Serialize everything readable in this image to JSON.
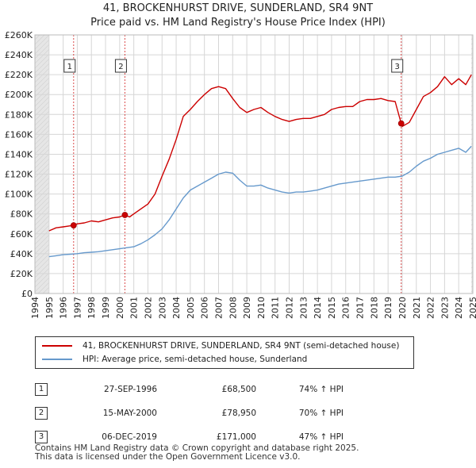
{
  "header": {
    "title_line1": "41, BROCKENHURST DRIVE, SUNDERLAND, SR4 9NT",
    "title_line2": "Price paid vs. HM Land Registry's House Price Index (HPI)"
  },
  "legend": {
    "items": [
      {
        "label": "41, BROCKENHURST DRIVE, SUNDERLAND, SR4 9NT (semi-detached house)",
        "color": "#cc0000"
      },
      {
        "label": "HPI: Average price, semi-detached house, Sunderland",
        "color": "#6699cc"
      }
    ]
  },
  "sales": [
    {
      "num": "1",
      "date": "27-SEP-1996",
      "price": "£68,500",
      "hpi": "74% ↑ HPI"
    },
    {
      "num": "2",
      "date": "15-MAY-2000",
      "price": "£78,950",
      "hpi": "70% ↑ HPI"
    },
    {
      "num": "3",
      "date": "06-DEC-2019",
      "price": "£171,000",
      "hpi": "47% ↑ HPI"
    }
  ],
  "footer": {
    "line1": "Contains HM Land Registry data © Crown copyright and database right 2025.",
    "line2": "This data is licensed under the Open Government Licence v3.0."
  },
  "chart_data": {
    "type": "line",
    "title": "41, BROCKENHURST DRIVE, SUNDERLAND, SR4 9NT",
    "subtitle": "Price paid vs. HM Land Registry's House Price Index (HPI)",
    "xlabel": "",
    "ylabel": "",
    "xlim": [
      1994,
      2025
    ],
    "ylim": [
      0,
      260000
    ],
    "x_ticks": [
      1994,
      1995,
      1996,
      1997,
      1998,
      1999,
      2000,
      2001,
      2002,
      2003,
      2004,
      2005,
      2006,
      2007,
      2008,
      2009,
      2010,
      2011,
      2012,
      2013,
      2014,
      2015,
      2016,
      2017,
      2018,
      2019,
      2020,
      2021,
      2022,
      2023,
      2024,
      2025
    ],
    "y_ticks": [
      {
        "value": 0,
        "label": "£0"
      },
      {
        "value": 20000,
        "label": "£20K"
      },
      {
        "value": 40000,
        "label": "£40K"
      },
      {
        "value": 60000,
        "label": "£60K"
      },
      {
        "value": 80000,
        "label": "£80K"
      },
      {
        "value": 100000,
        "label": "£100K"
      },
      {
        "value": 120000,
        "label": "£120K"
      },
      {
        "value": 140000,
        "label": "£140K"
      },
      {
        "value": 160000,
        "label": "£160K"
      },
      {
        "value": 180000,
        "label": "£180K"
      },
      {
        "value": 200000,
        "label": "£200K"
      },
      {
        "value": 220000,
        "label": "£220K"
      },
      {
        "value": 240000,
        "label": "£240K"
      },
      {
        "value": 260000,
        "label": "£260K"
      }
    ],
    "grid": true,
    "data_start": 1995.0,
    "data_end": 2024.9,
    "shaded_periods": [
      [
        1994,
        1995
      ],
      [
        2024.9,
        2025
      ]
    ],
    "series": [
      {
        "name": "41, BROCKENHURST DRIVE, SUNDERLAND, SR4 9NT (semi-detached house)",
        "color": "#cc0000",
        "x": [
          1995.0,
          1995.5,
          1996.0,
          1996.5,
          1996.74,
          1997.0,
          1997.5,
          1998.0,
          1998.5,
          1999.0,
          1999.5,
          2000.0,
          2000.37,
          2000.7,
          2001.0,
          2001.5,
          2002.0,
          2002.5,
          2003.0,
          2003.5,
          2004.0,
          2004.5,
          2005.0,
          2005.5,
          2006.0,
          2006.5,
          2007.0,
          2007.5,
          2008.0,
          2008.5,
          2009.0,
          2009.5,
          2010.0,
          2010.5,
          2011.0,
          2011.5,
          2012.0,
          2012.5,
          2013.0,
          2013.5,
          2014.0,
          2014.5,
          2015.0,
          2015.5,
          2016.0,
          2016.5,
          2017.0,
          2017.5,
          2018.0,
          2018.5,
          2019.0,
          2019.5,
          2019.93,
          2020.0,
          2020.5,
          2021.0,
          2021.5,
          2022.0,
          2022.5,
          2023.0,
          2023.5,
          2024.0,
          2024.5,
          2024.9
        ],
        "y": [
          63000,
          66000,
          67000,
          68000,
          68500,
          70000,
          71000,
          73000,
          72000,
          74000,
          76000,
          77000,
          78950,
          77000,
          80000,
          85000,
          90000,
          100000,
          118000,
          135000,
          155000,
          178000,
          185000,
          193000,
          200000,
          206000,
          208000,
          206000,
          196000,
          187000,
          182000,
          185000,
          187000,
          182000,
          178000,
          175000,
          173000,
          175000,
          176000,
          176000,
          178000,
          180000,
          185000,
          187000,
          188000,
          188000,
          193000,
          195000,
          195000,
          196000,
          194000,
          193000,
          171000,
          168000,
          172000,
          185000,
          198000,
          202000,
          208000,
          218000,
          210000,
          216000,
          210000,
          220000
        ]
      },
      {
        "name": "HPI: Average price, semi-detached house, Sunderland",
        "color": "#6699cc",
        "x": [
          1995.0,
          1995.5,
          1996.0,
          1996.5,
          1997.0,
          1997.5,
          1998.0,
          1998.5,
          1999.0,
          1999.5,
          2000.0,
          2000.5,
          2001.0,
          2001.5,
          2002.0,
          2002.5,
          2003.0,
          2003.5,
          2004.0,
          2004.5,
          2005.0,
          2005.5,
          2006.0,
          2006.5,
          2007.0,
          2007.5,
          2008.0,
          2008.5,
          2009.0,
          2009.5,
          2010.0,
          2010.5,
          2011.0,
          2011.5,
          2012.0,
          2012.5,
          2013.0,
          2013.5,
          2014.0,
          2014.5,
          2015.0,
          2015.5,
          2016.0,
          2016.5,
          2017.0,
          2017.5,
          2018.0,
          2018.5,
          2019.0,
          2019.5,
          2020.0,
          2020.5,
          2021.0,
          2021.5,
          2022.0,
          2022.5,
          2023.0,
          2023.5,
          2024.0,
          2024.5,
          2024.9
        ],
        "y": [
          37000,
          38000,
          39000,
          39500,
          40000,
          41000,
          41500,
          42000,
          43000,
          44000,
          45000,
          46000,
          47000,
          50000,
          54000,
          59000,
          65000,
          74000,
          85000,
          96000,
          104000,
          108000,
          112000,
          116000,
          120000,
          122000,
          121000,
          114000,
          108000,
          108000,
          109000,
          106000,
          104000,
          102000,
          101000,
          102000,
          102000,
          103000,
          104000,
          106000,
          108000,
          110000,
          111000,
          112000,
          113000,
          114000,
          115000,
          116000,
          117000,
          117000,
          118000,
          122000,
          128000,
          133000,
          136000,
          140000,
          142000,
          144000,
          146000,
          142000,
          148000
        ]
      }
    ],
    "annotations": [
      {
        "label": "1",
        "x": 1996.74,
        "y": 68500
      },
      {
        "label": "2",
        "x": 2000.37,
        "y": 78950
      },
      {
        "label": "3",
        "x": 2019.93,
        "y": 171000
      }
    ]
  }
}
